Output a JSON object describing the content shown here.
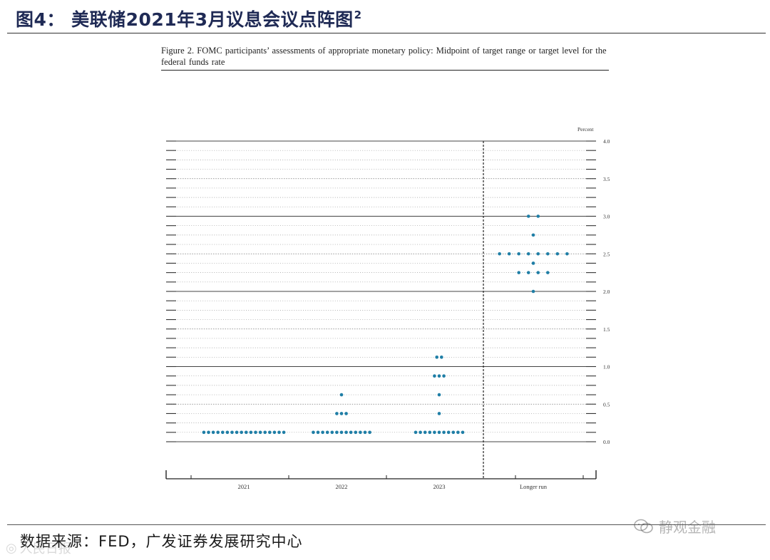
{
  "header": {
    "title": "图4：  美联储2021年3月议息会议点阵图",
    "superscript": "2"
  },
  "figure": {
    "caption": "Figure 2.  FOMC participants’ assessments of appropriate monetary policy:  Midpoint of target range or target level for the federal funds rate"
  },
  "footer": {
    "source": "数据来源：FED，广发证券发展研究中心"
  },
  "watermarks": {
    "right": "静观金融",
    "left": "人民日报"
  },
  "colors": {
    "dot": "#1f7ea6",
    "title": "#1f2a55"
  },
  "chart_data": {
    "type": "scatter",
    "title": "",
    "xlabel": "",
    "ylabel": "Percent",
    "categories": [
      "2021",
      "2022",
      "2023",
      "Longer run"
    ],
    "ylim": [
      0,
      4.0
    ],
    "y_ticks": [
      "0.0",
      "0.5",
      "1.0",
      "1.5",
      "2.0",
      "2.5",
      "3.0",
      "3.5",
      "4.0"
    ],
    "series": [
      {
        "category": "2021",
        "points": [
          {
            "y": 0.125,
            "count": 18
          }
        ]
      },
      {
        "category": "2022",
        "points": [
          {
            "y": 0.125,
            "count": 13
          },
          {
            "y": 0.375,
            "count": 3
          },
          {
            "y": 0.625,
            "count": 1
          }
        ]
      },
      {
        "category": "2023",
        "points": [
          {
            "y": 0.125,
            "count": 11
          },
          {
            "y": 0.375,
            "count": 1
          },
          {
            "y": 0.625,
            "count": 1
          },
          {
            "y": 0.875,
            "count": 3
          },
          {
            "y": 1.125,
            "count": 2
          }
        ]
      },
      {
        "category": "Longer run",
        "points": [
          {
            "y": 2.0,
            "count": 1
          },
          {
            "y": 2.25,
            "count": 4
          },
          {
            "y": 2.375,
            "count": 1
          },
          {
            "y": 2.5,
            "count": 8
          },
          {
            "y": 2.75,
            "count": 1
          },
          {
            "y": 3.0,
            "count": 2
          }
        ]
      }
    ],
    "grid": true,
    "legend": "none"
  }
}
